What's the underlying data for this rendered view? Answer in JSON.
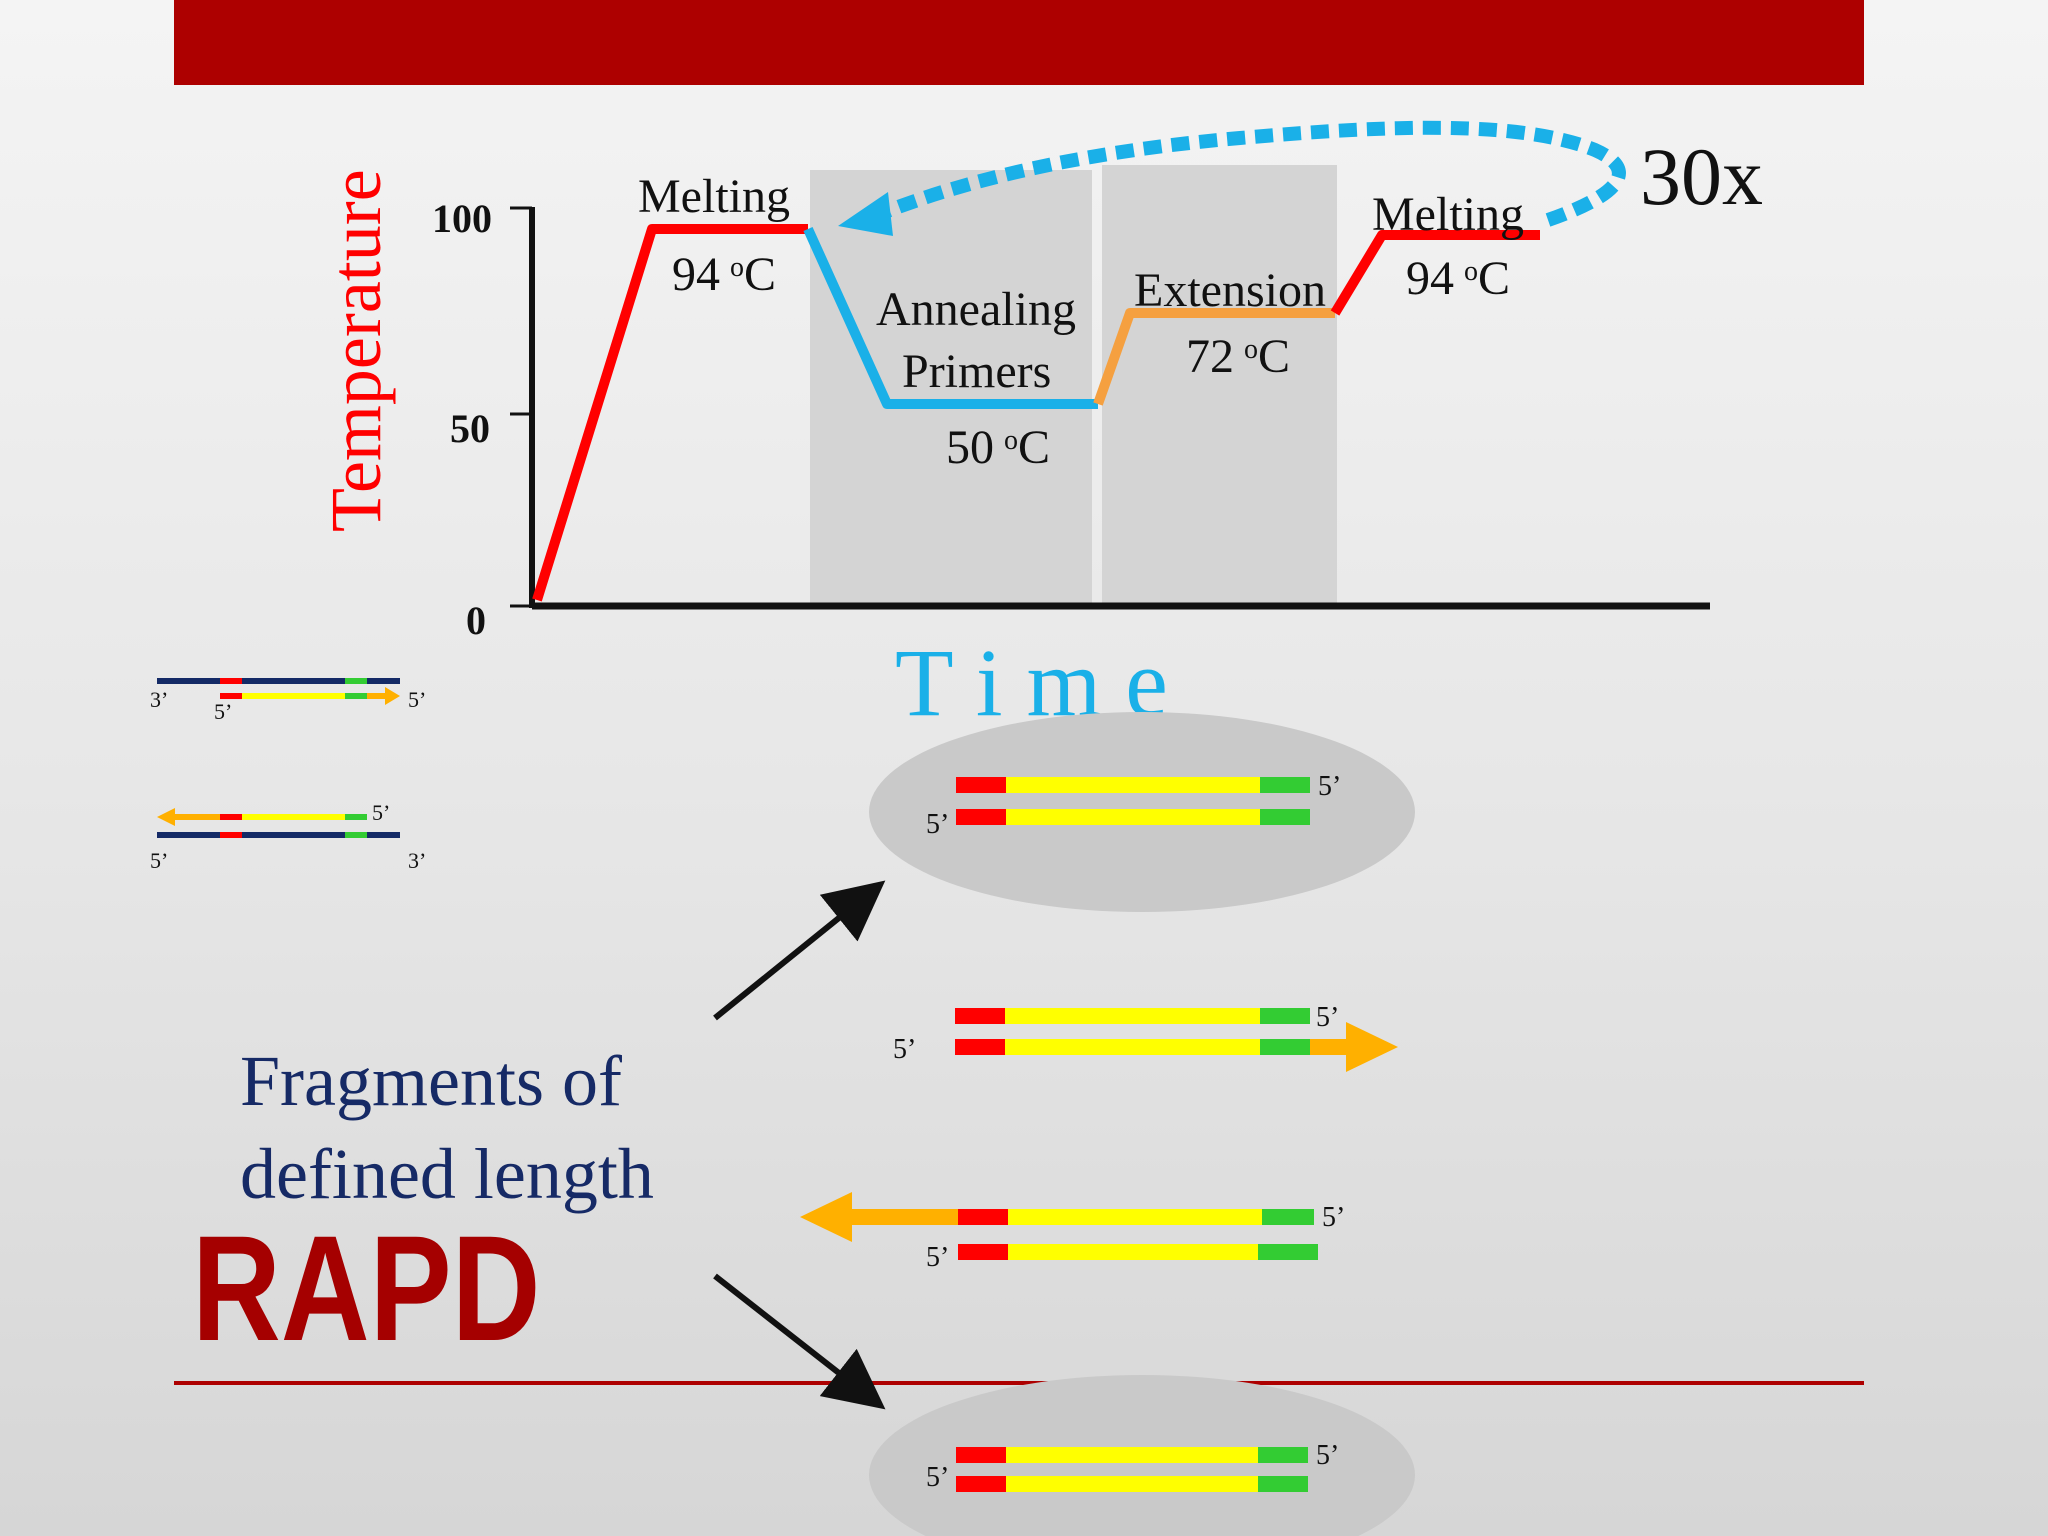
{
  "slide": {
    "accent_color": "#ad0000",
    "rapd_title": "RAPD",
    "fragments_caption_line1": "Fragments of",
    "fragments_caption_line2": "defined length",
    "caption_color": "#162a66"
  },
  "pcr_profile": {
    "y_axis_label": "Temperature",
    "x_axis_label": "T i m e",
    "y_ticks": [
      "100",
      "50",
      "0"
    ],
    "cycles_label": "30x",
    "stages": [
      {
        "name": "Melting",
        "temp_value": "94",
        "temp_sup": "o",
        "temp_unit": "C",
        "color": "#ff0000"
      },
      {
        "name_line1": "Annealing",
        "name_line2": "Primers",
        "temp_value": "50",
        "temp_sup": "o",
        "temp_unit": "C",
        "color": "#1ab0e8"
      },
      {
        "name": "Extension",
        "temp_value": "72",
        "temp_sup": "o",
        "temp_unit": "C",
        "color": "#f5a040"
      },
      {
        "name": "Melting",
        "temp_value": "94",
        "temp_sup": "o",
        "temp_unit": "C",
        "color": "#ff0000"
      }
    ],
    "repeat_arrow_color": "#1ab0e8"
  },
  "strand_labels": {
    "three_prime": "3’",
    "five_prime": "5’"
  },
  "strand_colors": {
    "template": "#142a66",
    "primer": "#ff0000",
    "product": "#ffff00",
    "primer_site": "#33cc33",
    "extension": "#ffb000"
  }
}
